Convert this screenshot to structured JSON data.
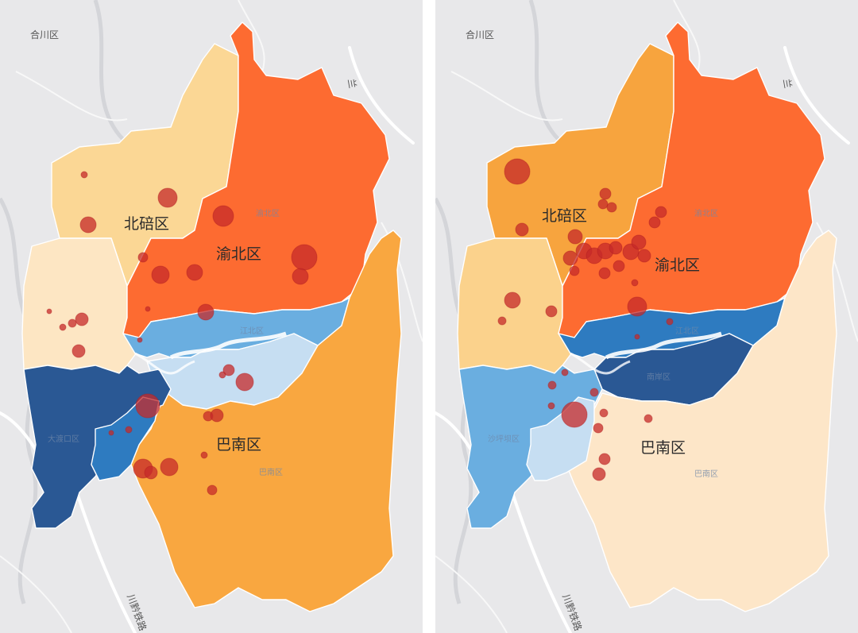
{
  "maps": [
    {
      "id": "left",
      "base_label": "合川区",
      "road_labels": [
        "兰",
        "川黔铁路"
      ],
      "region_labels_main": [
        "北碚区",
        "渝北区",
        "巴南区"
      ],
      "region_labels_faint": [
        "渝北区",
        "江北区",
        "巴南区",
        "大渡口区"
      ],
      "region_colors": {
        "beibei": "#fbd795",
        "yubei": "#fd6b31",
        "banan": "#f9a740",
        "shapingba": "#fde6c3",
        "jiangbei": "#6aaee0",
        "yuzhong_nanan": "#c6def2",
        "jiulongpo": "#2a5894",
        "dadukou": "#2e7bc0"
      },
      "bubble_color": "#c62a2a"
    },
    {
      "id": "right",
      "base_label": "合川区",
      "road_labels": [
        "兰",
        "川黔铁路"
      ],
      "region_labels_main": [
        "北碚区",
        "渝北区",
        "巴南区"
      ],
      "region_labels_faint": [
        "渝北区",
        "江北区",
        "南岸区",
        "沙坪坝区",
        "巴南区"
      ],
      "region_colors": {
        "beibei": "#f7a43e",
        "yubei": "#fd6b31",
        "banan": "#fde6c8",
        "shapingba": "#fbd28c",
        "jiangbei": "#2e7bc0",
        "nanan": "#2a5894",
        "jiulongpo": "#6aaee0",
        "dadukou": "#c6def2"
      },
      "bubble_color": "#c62a2a"
    }
  ]
}
